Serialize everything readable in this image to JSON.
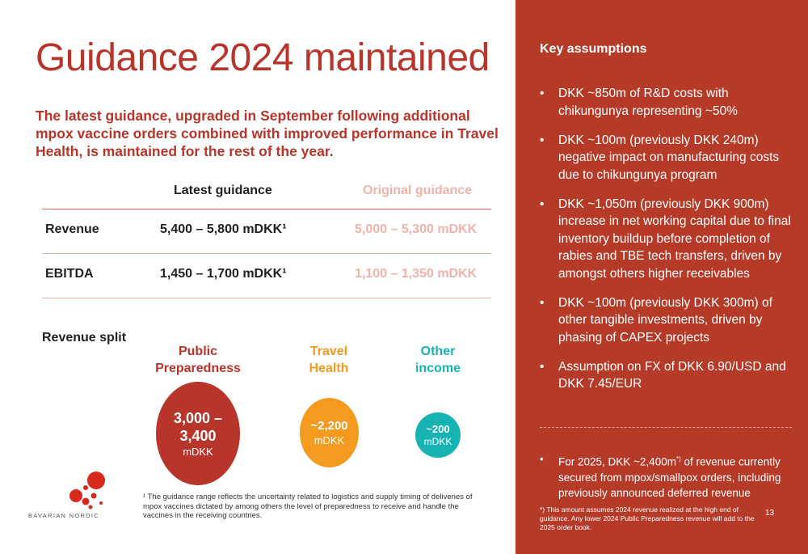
{
  "title": "Guidance 2024 maintained",
  "intro": "The latest guidance, upgraded in September following additional mpox vaccine orders combined with improved performance in Travel Health, is maintained for the rest of the year.",
  "guidance": {
    "headers": [
      "",
      "Latest guidance",
      "Original guidance"
    ],
    "rows": [
      {
        "label": "Revenue",
        "latest": "5,400 – 5,800 mDKK¹",
        "original": "5,000 – 5,300 mDKK"
      },
      {
        "label": "EBITDA",
        "latest": "1,450 – 1,700 mDKK¹",
        "original": "1,100 – 1,350 mDKK"
      }
    ]
  },
  "revenue_split": {
    "label": "Revenue split",
    "segments": [
      {
        "name_line1": "Public",
        "name_line2": "Preparedness",
        "value_line1": "3,000 –",
        "value_line2": "3,400",
        "unit": "mDKK",
        "color": "#b7352a"
      },
      {
        "name_line1": "Travel",
        "name_line2": "Health",
        "value_line1": "~2,200",
        "value_line2": "",
        "unit": "mDKK",
        "color": "#f39a1f"
      },
      {
        "name_line1": "Other",
        "name_line2": "income",
        "value_line1": "~200",
        "value_line2": "",
        "unit": "mDKK",
        "color": "#17b3b3"
      }
    ]
  },
  "footnote": "¹ The guidance range reflects the uncertainty related to logistics and supply timing of deliveries of mpox vaccines dictated by among others the level of preparedness to receive and handle the vaccines in the receiving countries.",
  "logo_text": "BAVARIAN NORDIC",
  "panel": {
    "heading": "Key assumptions",
    "bullets": [
      "DKK ~850m of R&D costs with chikungunya representing ~50%",
      "DKK ~100m (previously DKK 240m) negative impact on manufacturing costs due to chikungunya program",
      "DKK ~1,050m (previously DKK 900m) increase in net working capital due to final inventory buildup before completion of rabies and TBE tech transfers, driven by amongst others higher receivables",
      "DKK ~100m (previously DKK 300m) of other tangible investments, driven by phasing of CAPEX projects",
      "Assumption on FX of DKK 6.90/USD and DKK 7.45/EUR"
    ],
    "note_pre": "For 2025, DKK ~2,400m",
    "note_sup": "*)",
    "note_post": " of revenue currently secured from mpox/smallpox orders, including previously announced deferred revenue",
    "footnote": "*) This amount assumes 2024 revenue realized at the high end of guidance. Any lower 2024 Public Preparedness revenue will add to the 2025 order book.",
    "page_number": "13"
  }
}
